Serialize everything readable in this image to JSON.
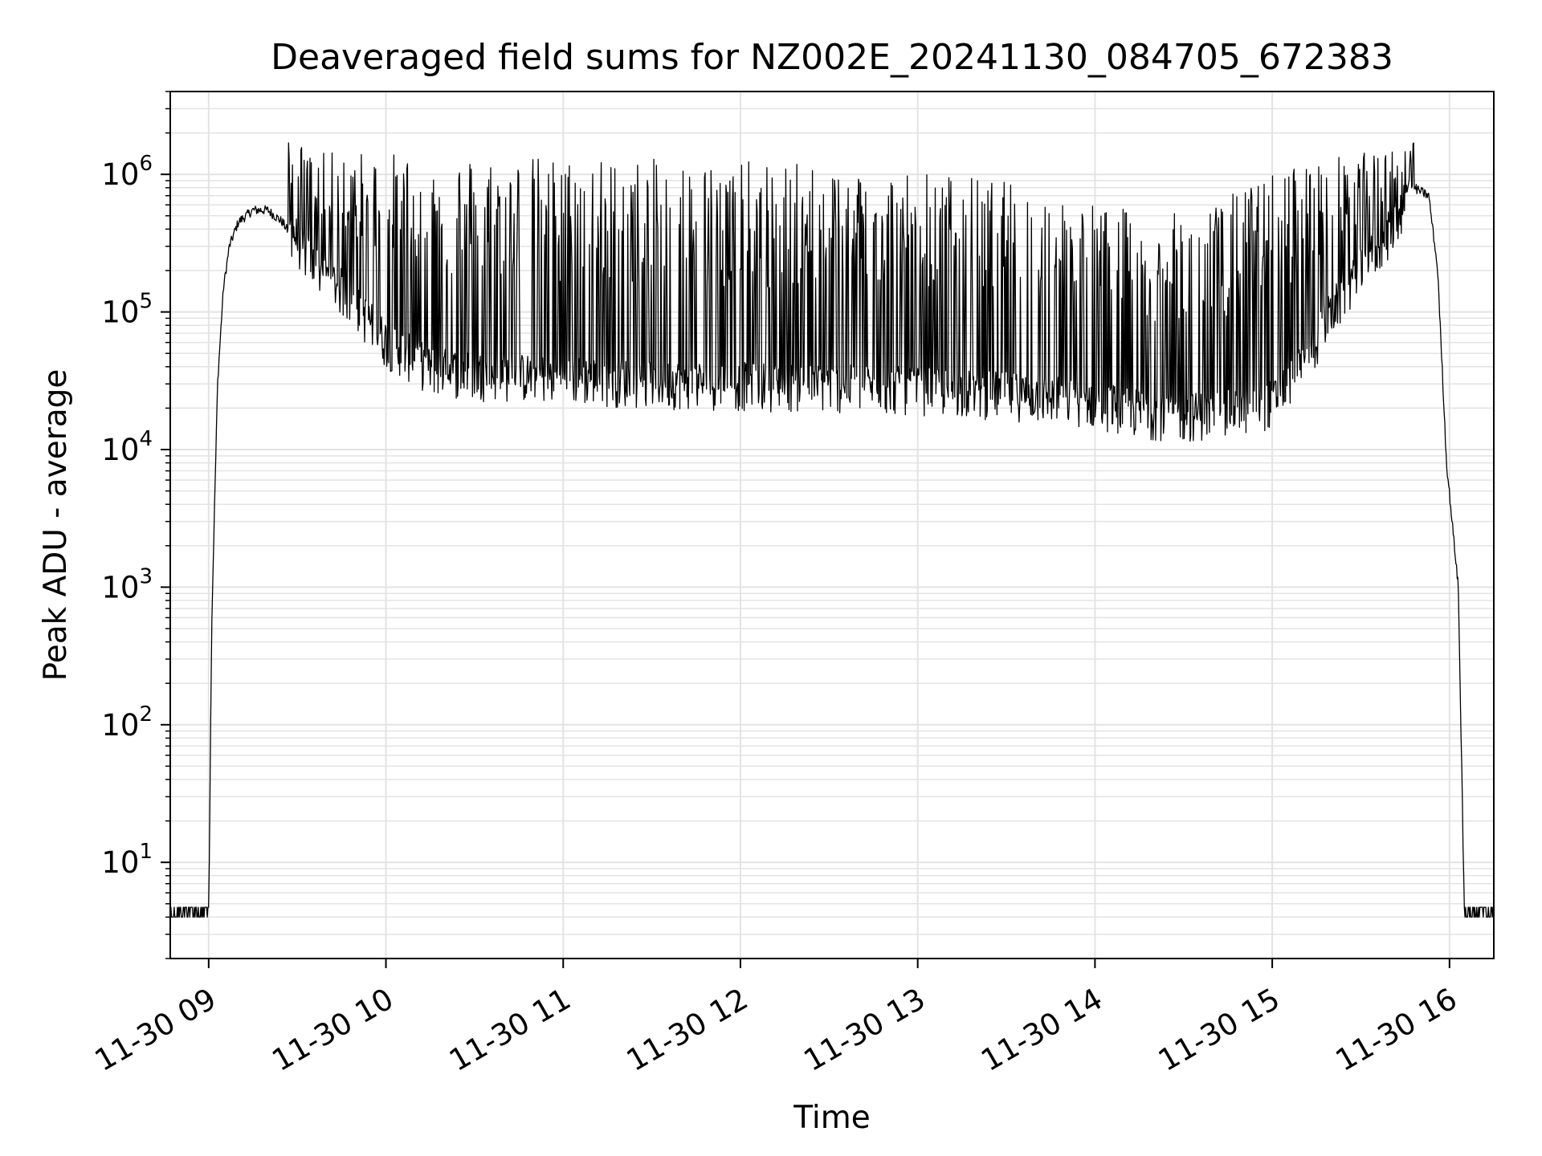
{
  "chart_data": {
    "type": "line",
    "title": "Deaveraged field sums for NZ002E_20241130_084705_672383",
    "xlabel": "Time",
    "ylabel": "Peak ADU - average",
    "y_scale": "log",
    "grid": true,
    "line_color": "#000000",
    "grid_color": "#e3e3e3",
    "xlim": [
      "2024-11-30 08:47",
      "2024-11-30 16:15"
    ],
    "ylim": [
      2,
      4000000
    ],
    "x_ticks": [
      {
        "value": "2024-11-30 09:00",
        "label": "11-30 09"
      },
      {
        "value": "2024-11-30 10:00",
        "label": "11-30 10"
      },
      {
        "value": "2024-11-30 11:00",
        "label": "11-30 11"
      },
      {
        "value": "2024-11-30 12:00",
        "label": "11-30 12"
      },
      {
        "value": "2024-11-30 13:00",
        "label": "11-30 13"
      },
      {
        "value": "2024-11-30 14:00",
        "label": "11-30 14"
      },
      {
        "value": "2024-11-30 15:00",
        "label": "11-30 15"
      },
      {
        "value": "2024-11-30 16:00",
        "label": "11-30 16"
      }
    ],
    "y_ticks": [
      {
        "value": 10,
        "base": "10",
        "exp": "1"
      },
      {
        "value": 100,
        "base": "10",
        "exp": "2"
      },
      {
        "value": 1000,
        "base": "10",
        "exp": "3"
      },
      {
        "value": 10000,
        "base": "10",
        "exp": "4"
      },
      {
        "value": 100000,
        "base": "10",
        "exp": "5"
      },
      {
        "value": 1000000,
        "base": "10",
        "exp": "6"
      }
    ],
    "series": [
      {
        "x": [
          "2024-11-30 08:47",
          "2024-11-30 09:00",
          "2024-11-30 09:01",
          "2024-11-30 09:03",
          "2024-11-30 09:05",
          "2024-11-30 09:07",
          "2024-11-30 09:10",
          "2024-11-30 09:15",
          "2024-11-30 09:20",
          "2024-11-30 09:25",
          "2024-11-30 09:30",
          "2024-11-30 09:35",
          "2024-11-30 09:45",
          "2024-11-30 10:00",
          "2024-11-30 10:15",
          "2024-11-30 10:30",
          "2024-11-30 11:00",
          "2024-11-30 11:30",
          "2024-11-30 12:00",
          "2024-11-30 12:30",
          "2024-11-30 13:00",
          "2024-11-30 13:30",
          "2024-11-30 14:00",
          "2024-11-30 14:15",
          "2024-11-30 14:30",
          "2024-11-30 14:45",
          "2024-11-30 15:00",
          "2024-11-30 15:10",
          "2024-11-30 15:20",
          "2024-11-30 15:30",
          "2024-11-30 15:40",
          "2024-11-30 15:48",
          "2024-11-30 15:53",
          "2024-11-30 15:56",
          "2024-11-30 15:59",
          "2024-11-30 16:03",
          "2024-11-30 16:05",
          "2024-11-30 16:10",
          "2024-11-30 16:15"
        ],
        "y": [
          4,
          4,
          500,
          30000,
          150000,
          300000,
          450000,
          550000,
          550000,
          450000,
          300000,
          200000,
          130000,
          55000,
          35000,
          32000,
          30000,
          28000,
          27000,
          26000,
          25000,
          23000,
          20000,
          17000,
          16000,
          17000,
          20000,
          35000,
          90000,
          180000,
          350000,
          800000,
          700000,
          200000,
          8000,
          1000,
          4,
          4,
          4
        ]
      },
      {
        "x": [
          "2024-11-30 09:27",
          "2024-11-30 09:35",
          "2024-11-30 09:45",
          "2024-11-30 10:00",
          "2024-11-30 10:30",
          "2024-11-30 11:00",
          "2024-11-30 11:30",
          "2024-11-30 12:00",
          "2024-11-30 12:30",
          "2024-11-30 13:00",
          "2024-11-30 13:30",
          "2024-11-30 13:50",
          "2024-11-30 14:05",
          "2024-11-30 14:20",
          "2024-11-30 14:35",
          "2024-11-30 14:50",
          "2024-11-30 15:05",
          "2024-11-30 15:25",
          "2024-11-30 15:40",
          "2024-11-30 15:48"
        ],
        "y": [
          2000000,
          1400000,
          1500000,
          1450000,
          1400000,
          1350000,
          1300000,
          1250000,
          1200000,
          1100000,
          900000,
          700000,
          600000,
          500000,
          550000,
          800000,
          1200000,
          1400000,
          1500000,
          1800000
        ]
      }
    ]
  }
}
